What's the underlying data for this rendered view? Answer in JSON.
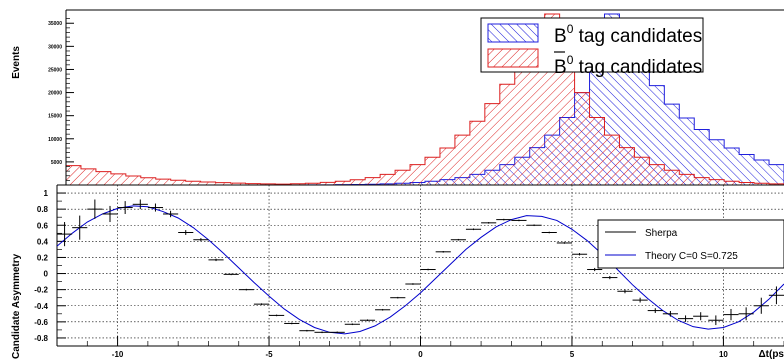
{
  "chart_data": [
    {
      "type": "histogram",
      "ylabel": "Events",
      "xlim": [
        -12,
        12
      ],
      "ylim": [
        0,
        37000
      ],
      "yticks": [
        5000,
        10000,
        15000,
        20000,
        25000,
        30000,
        35000
      ],
      "ytick_labels": [
        "5000",
        "10000",
        "15000",
        "20000",
        "25000",
        "30000",
        "35000"
      ],
      "bin_width": 0.5,
      "bin_start": -12,
      "legend_position": "top-right",
      "series": [
        {
          "name_parts": {
            "sym": "B",
            "sup": "0",
            "text": " tag candidates"
          },
          "color": "#1f1fdc",
          "hatch": "forward-diagonal",
          "values": [
            0,
            0,
            0,
            0,
            0,
            0,
            0,
            0,
            0,
            0,
            0,
            0,
            0,
            0,
            0,
            10,
            20,
            40,
            70,
            110,
            170,
            250,
            370,
            550,
            800,
            1150,
            1600,
            2300,
            3200,
            4400,
            6000,
            8100,
            10800,
            14600,
            20000,
            28000,
            37000,
            33000,
            26000,
            21500,
            17500,
            14500,
            12000,
            9800,
            8000,
            6600,
            5400,
            4400
          ]
        },
        {
          "name_parts": {
            "sym": "B",
            "sup": "0",
            "text": " tag candidates",
            "bar": "over"
          },
          "color": "#dc1f1f",
          "hatch": "backward-diagonal",
          "values": [
            4200,
            3500,
            2900,
            2400,
            1950,
            1580,
            1270,
            1020,
            820,
            650,
            510,
            400,
            310,
            250,
            200,
            260,
            380,
            560,
            800,
            1130,
            1600,
            2300,
            3200,
            4400,
            6000,
            8000,
            10800,
            13800,
            17600,
            21800,
            26200,
            31000,
            37000,
            28000,
            20000,
            14600,
            10800,
            8100,
            6000,
            4400,
            3200,
            2300,
            1600,
            1150,
            800,
            550,
            370,
            250
          ]
        }
      ]
    },
    {
      "type": "scatter",
      "ylabel": "Candidate Asymmetry",
      "xlabel": "Δt(ps",
      "xlim": [
        -12,
        12
      ],
      "ylim": [
        -0.9,
        1.1
      ],
      "xticks": [
        -10,
        -5,
        0,
        5,
        10
      ],
      "xtick_labels": [
        "-10",
        "-5",
        "0",
        "5",
        "10"
      ],
      "yticks": [
        -0.8,
        -0.6,
        -0.4,
        -0.2,
        0,
        0.2,
        0.4,
        0.6,
        0.8,
        1
      ],
      "ytick_labels": [
        "-0.8",
        "-0.6",
        "-0.4",
        "-0.2",
        "0",
        "0.2",
        "0.4",
        "0.6",
        "0.8",
        "1"
      ],
      "grid": true,
      "legend_position": "top-right",
      "series": [
        {
          "name": "Sherpa",
          "color": "#000000",
          "bin_width": 0.5,
          "x": [
            -11.75,
            -11.25,
            -10.75,
            -10.25,
            -9.75,
            -9.25,
            -8.75,
            -8.25,
            -7.75,
            -7.25,
            -6.75,
            -6.25,
            -5.75,
            -5.25,
            -4.75,
            -4.25,
            -3.75,
            -3.25,
            -2.75,
            -2.25,
            -1.75,
            -1.25,
            -0.75,
            -0.25,
            0.25,
            0.75,
            1.25,
            1.75,
            2.25,
            2.75,
            3.25,
            3.75,
            4.25,
            4.75,
            5.25,
            5.75,
            6.25,
            6.75,
            7.25,
            7.75,
            8.25,
            8.75,
            9.25,
            9.75,
            10.25,
            10.75,
            11.25,
            11.75
          ],
          "y": [
            0.49,
            0.57,
            0.8,
            0.74,
            0.82,
            0.86,
            0.82,
            0.74,
            0.51,
            0.42,
            0.17,
            -0.01,
            -0.2,
            -0.38,
            -0.52,
            -0.62,
            -0.71,
            -0.73,
            -0.73,
            -0.63,
            -0.58,
            -0.45,
            -0.3,
            -0.13,
            0.05,
            0.27,
            0.42,
            0.55,
            0.63,
            0.67,
            0.66,
            0.6,
            0.51,
            0.38,
            0.24,
            0.05,
            -0.05,
            -0.22,
            -0.33,
            -0.46,
            -0.5,
            -0.56,
            -0.53,
            -0.58,
            -0.51,
            -0.5,
            -0.4,
            -0.27
          ],
          "yerr": [
            0.15,
            0.15,
            0.12,
            0.1,
            0.08,
            0.06,
            0.05,
            0.04,
            0.03,
            0.02,
            0.015,
            0.01,
            0.01,
            0.01,
            0.01,
            0.01,
            0.01,
            0.01,
            0.01,
            0.01,
            0.01,
            0.01,
            0.01,
            0.01,
            0.01,
            0.01,
            0.01,
            0.01,
            0.01,
            0.01,
            0.01,
            0.01,
            0.01,
            0.01,
            0.015,
            0.02,
            0.02,
            0.025,
            0.03,
            0.03,
            0.035,
            0.04,
            0.05,
            0.06,
            0.07,
            0.08,
            0.1,
            0.11
          ]
        },
        {
          "name": "Theory C=0 S=0.725",
          "color": "#0000cc",
          "type": "line",
          "amplitude": 0.725,
          "frequency": 0.51,
          "x": [
            -12,
            -11.5,
            -11,
            -10.5,
            -10,
            -9.5,
            -9,
            -8.5,
            -8,
            -7.5,
            -7,
            -6.5,
            -6,
            -5.5,
            -5,
            -4.5,
            -4,
            -3.5,
            -3,
            -2.5,
            -2,
            -1.5,
            -1,
            -0.5,
            0,
            0.5,
            1,
            1.5,
            2,
            2.5,
            3,
            3.5,
            4,
            4.5,
            5,
            5.5,
            6,
            6.5,
            7,
            7.5,
            8,
            8.5,
            9,
            9.5,
            10,
            10.5,
            11,
            11.5,
            12
          ],
          "y": [
            0.34,
            0.5,
            0.64,
            0.74,
            0.81,
            0.84,
            0.83,
            0.77,
            0.69,
            0.57,
            0.42,
            0.25,
            0.07,
            -0.11,
            -0.28,
            -0.44,
            -0.57,
            -0.67,
            -0.73,
            -0.75,
            -0.72,
            -0.65,
            -0.54,
            -0.4,
            -0.24,
            -0.06,
            0.12,
            0.3,
            0.45,
            0.58,
            0.67,
            0.72,
            0.71,
            0.66,
            0.55,
            0.41,
            0.24,
            0.05,
            -0.14,
            -0.31,
            -0.46,
            -0.58,
            -0.66,
            -0.69,
            -0.67,
            -0.6,
            -0.48,
            -0.32,
            -0.13
          ]
        }
      ]
    }
  ]
}
